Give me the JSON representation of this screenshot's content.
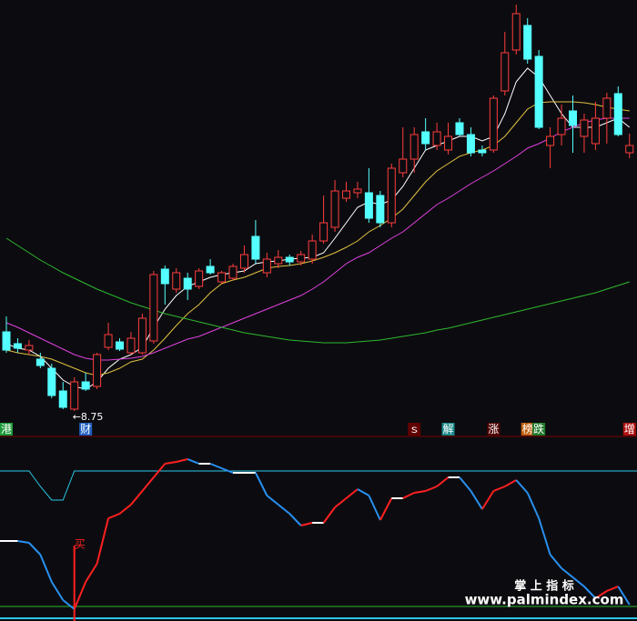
{
  "chart_data": [
    {
      "type": "candlestick",
      "ylim": [
        8.59,
        17.79
      ],
      "up_color": "#ff3c3c",
      "down_color": "#54ffff",
      "ohlc": {
        "open": [
          10.49,
          10.23,
          10.09,
          9.89,
          9.69,
          9.19,
          8.79,
          9.39,
          9.29,
          10.15,
          10.27,
          10.03,
          10.03,
          10.29,
          11.87,
          11.43,
          11.67,
          11.49,
          11.93,
          11.59,
          11.67,
          11.89,
          12.59,
          11.79,
          11.99,
          12.13,
          12.03,
          12.09,
          12.49,
          12.79,
          13.43,
          13.55,
          13.55,
          13.49,
          12.89,
          13.99,
          14.29,
          14.89,
          14.59,
          14.49,
          15.09,
          14.83,
          14.49,
          14.49,
          15.79,
          16.69,
          17.23,
          16.55,
          14.59,
          14.83,
          15.35,
          14.79,
          14.63,
          15.19,
          15.73,
          14.43
        ],
        "high": [
          10.83,
          10.35,
          10.31,
          10.03,
          9.79,
          9.39,
          9.49,
          9.59,
          10.03,
          10.69,
          10.35,
          10.49,
          10.89,
          11.83,
          11.95,
          11.89,
          11.79,
          11.89,
          12.09,
          11.83,
          11.99,
          12.39,
          12.95,
          12.23,
          12.29,
          12.19,
          12.27,
          12.63,
          13.49,
          13.83,
          13.79,
          13.79,
          14.09,
          13.59,
          14.19,
          14.99,
          14.99,
          15.19,
          15.09,
          15.09,
          15.19,
          14.99,
          14.59,
          15.69,
          17.09,
          17.69,
          17.39,
          16.69,
          14.99,
          15.49,
          15.69,
          15.29,
          15.55,
          15.75,
          15.89,
          14.85
        ],
        "low": [
          10.03,
          10.03,
          9.99,
          9.69,
          9.03,
          8.79,
          8.75,
          9.19,
          9.23,
          10.09,
          10.07,
          9.99,
          9.99,
          10.23,
          11.09,
          11.35,
          11.19,
          11.43,
          11.75,
          11.55,
          11.63,
          11.79,
          11.99,
          11.69,
          11.89,
          11.95,
          11.95,
          11.99,
          12.43,
          12.69,
          13.35,
          13.43,
          12.89,
          12.79,
          12.79,
          13.89,
          13.99,
          14.49,
          14.49,
          14.39,
          14.79,
          14.35,
          14.35,
          14.43,
          15.69,
          16.59,
          16.39,
          14.95,
          14.09,
          14.59,
          14.43,
          14.43,
          14.49,
          14.63,
          14.79,
          14.31
        ],
        "close": [
          10.09,
          10.13,
          10.19,
          9.75,
          9.09,
          8.83,
          9.39,
          9.23,
          9.99,
          10.43,
          10.11,
          10.35,
          10.79,
          11.75,
          11.55,
          11.79,
          11.43,
          11.83,
          11.79,
          11.79,
          11.93,
          12.19,
          12.09,
          12.09,
          12.13,
          12.03,
          12.19,
          12.49,
          12.89,
          13.59,
          13.59,
          13.63,
          12.99,
          12.89,
          14.09,
          14.29,
          14.83,
          14.63,
          14.89,
          14.79,
          14.83,
          14.43,
          14.43,
          15.63,
          16.63,
          17.49,
          16.49,
          14.99,
          14.79,
          15.19,
          15.03,
          15.15,
          15.19,
          15.63,
          14.83,
          14.59
        ]
      },
      "series": [
        {
          "color": "#ffffff",
          "values": [
            10.23,
            10.13,
            10.09,
            9.95,
            9.69,
            9.43,
            9.29,
            9.23,
            9.39,
            9.69,
            9.89,
            9.99,
            10.15,
            10.59,
            10.99,
            11.29,
            11.49,
            11.59,
            11.69,
            11.75,
            11.79,
            11.83,
            11.99,
            12.03,
            12.05,
            12.09,
            12.11,
            12.13,
            12.23,
            12.55,
            12.89,
            13.23,
            13.35,
            13.29,
            13.39,
            13.69,
            14.09,
            14.49,
            14.59,
            14.69,
            14.79,
            14.79,
            14.69,
            14.79,
            15.29,
            15.99,
            16.29,
            16.09,
            15.69,
            15.29,
            14.99,
            14.99,
            14.99,
            15.09,
            15.19,
            14.99
          ]
        },
        {
          "color": "#e0c040",
          "values": [
            10.09,
            10.03,
            9.99,
            9.95,
            9.89,
            9.79,
            9.69,
            9.59,
            9.53,
            9.59,
            9.69,
            9.83,
            9.89,
            10.09,
            10.35,
            10.63,
            10.89,
            11.09,
            11.35,
            11.55,
            11.63,
            11.69,
            11.79,
            11.89,
            11.93,
            11.95,
            11.99,
            12.05,
            12.13,
            12.23,
            12.35,
            12.49,
            12.69,
            12.83,
            12.99,
            13.19,
            13.49,
            13.79,
            14.03,
            14.19,
            14.35,
            14.43,
            14.49,
            14.59,
            14.79,
            15.09,
            15.39,
            15.53,
            15.55,
            15.55,
            15.55,
            15.53,
            15.49,
            15.43,
            15.39,
            15.35
          ]
        },
        {
          "color": "#e040e0",
          "values": [
            10.69,
            10.59,
            10.47,
            10.35,
            10.23,
            10.11,
            9.99,
            9.91,
            9.87,
            9.87,
            9.89,
            9.91,
            9.95,
            10.03,
            10.13,
            10.23,
            10.33,
            10.39,
            10.49,
            10.59,
            10.69,
            10.79,
            10.89,
            10.99,
            11.09,
            11.19,
            11.29,
            11.43,
            11.59,
            11.79,
            11.99,
            12.13,
            12.23,
            12.39,
            12.55,
            12.69,
            12.89,
            13.09,
            13.29,
            13.43,
            13.59,
            13.75,
            13.89,
            14.03,
            14.19,
            14.35,
            14.53,
            14.63,
            14.75,
            14.89,
            14.99,
            15.09,
            15.15,
            15.19,
            15.19,
            15.19
          ]
        },
        {
          "color": "#2eb82e",
          "values": [
            12.55,
            12.39,
            12.23,
            12.07,
            11.93,
            11.79,
            11.67,
            11.55,
            11.43,
            11.33,
            11.23,
            11.13,
            11.05,
            10.97,
            10.89,
            10.83,
            10.77,
            10.71,
            10.65,
            10.59,
            10.53,
            10.47,
            10.43,
            10.39,
            10.35,
            10.31,
            10.29,
            10.27,
            10.25,
            10.25,
            10.25,
            10.27,
            10.29,
            10.31,
            10.35,
            10.39,
            10.43,
            10.47,
            10.53,
            10.57,
            10.63,
            10.69,
            10.75,
            10.81,
            10.87,
            10.93,
            10.99,
            11.05,
            11.11,
            11.17,
            11.23,
            11.29,
            11.35,
            11.43,
            11.51,
            11.59
          ]
        }
      ],
      "annotation": "←8.75",
      "events": [
        {
          "text": "港",
          "color": "#1f9a3a"
        },
        null,
        null,
        null,
        null,
        null,
        null,
        {
          "text": "财",
          "color": "#2060c0"
        },
        null,
        null,
        null,
        null,
        null,
        null,
        null,
        null,
        null,
        null,
        null,
        null,
        null,
        null,
        null,
        null,
        null,
        null,
        null,
        null,
        null,
        null,
        null,
        null,
        null,
        null,
        null,
        null,
        {
          "text": "ｓ",
          "color": "#600000"
        },
        null,
        null,
        {
          "text": "解",
          "color": "#1a8a8a"
        },
        null,
        null,
        null,
        {
          "text": "涨",
          "color": "#500000"
        },
        null,
        null,
        {
          "text": "榜",
          "color": "#c06010"
        },
        {
          "text": "跌",
          "color": "#1f7a2a"
        },
        null,
        null,
        null,
        null,
        null,
        null,
        null,
        {
          "text": "增",
          "color": "#b01010"
        }
      ]
    },
    {
      "type": "line",
      "ylim": [
        0,
        100
      ],
      "up_color": "#ff2020",
      "down_color": "#2890f0",
      "flat_color": "#ffffff",
      "values": [
        44,
        44,
        43,
        36.5,
        21.5,
        11.5,
        6.5,
        21.5,
        31.5,
        56.5,
        59,
        64,
        71.5,
        79,
        86.5,
        87.5,
        89,
        86.5,
        86.5,
        84,
        81.5,
        81.5,
        81.5,
        69,
        64,
        59,
        52.5,
        54,
        54,
        62.5,
        67.5,
        72.5,
        69,
        55.5,
        67.5,
        67.5,
        70.5,
        71.5,
        74,
        79,
        79,
        71.5,
        61.5,
        71.5,
        74,
        77.5,
        70.5,
        56.5,
        36.5,
        29,
        24,
        19,
        12.5,
        16.5,
        19,
        9
      ],
      "band": {
        "color": "#2ac8e8",
        "values": [
          82.5,
          82.5,
          82.5,
          74,
          66.5,
          66.5,
          82.5,
          82.5,
          82.5,
          82.5,
          82.5,
          82.5,
          82.5,
          82.5,
          82.5,
          82.5,
          82.5,
          82.5,
          82.5,
          82.5,
          82.5,
          82.5,
          82.5,
          82.5,
          82.5,
          82.5,
          82.5,
          82.5,
          82.5,
          82.5,
          82.5,
          82.5,
          82.5,
          82.5,
          82.5,
          82.5,
          82.5,
          82.5,
          82.5,
          82.5,
          82.5,
          82.5,
          82.5,
          82.5,
          82.5,
          82.5,
          82.5,
          82.5,
          82.5,
          82.5,
          82.5,
          82.5,
          82.5,
          82.5,
          82.5,
          82.5
        ]
      },
      "hline": {
        "color": "#2db82d",
        "value": 8
      },
      "signals": [
        null,
        null,
        null,
        null,
        null,
        null,
        "买",
        null,
        null,
        null,
        null,
        null,
        null,
        null,
        null,
        null,
        null,
        null,
        null,
        null,
        null,
        null,
        null,
        null,
        null,
        null,
        null,
        null,
        null,
        null,
        null,
        null,
        null,
        null,
        null,
        null,
        null,
        null,
        null,
        null,
        null,
        null,
        null,
        null,
        null,
        null,
        null,
        null,
        null,
        null,
        null,
        null,
        null,
        null,
        null,
        null
      ]
    }
  ],
  "watermark": {
    "title": "掌 上 指 标",
    "url": "www.palmindex.com"
  }
}
